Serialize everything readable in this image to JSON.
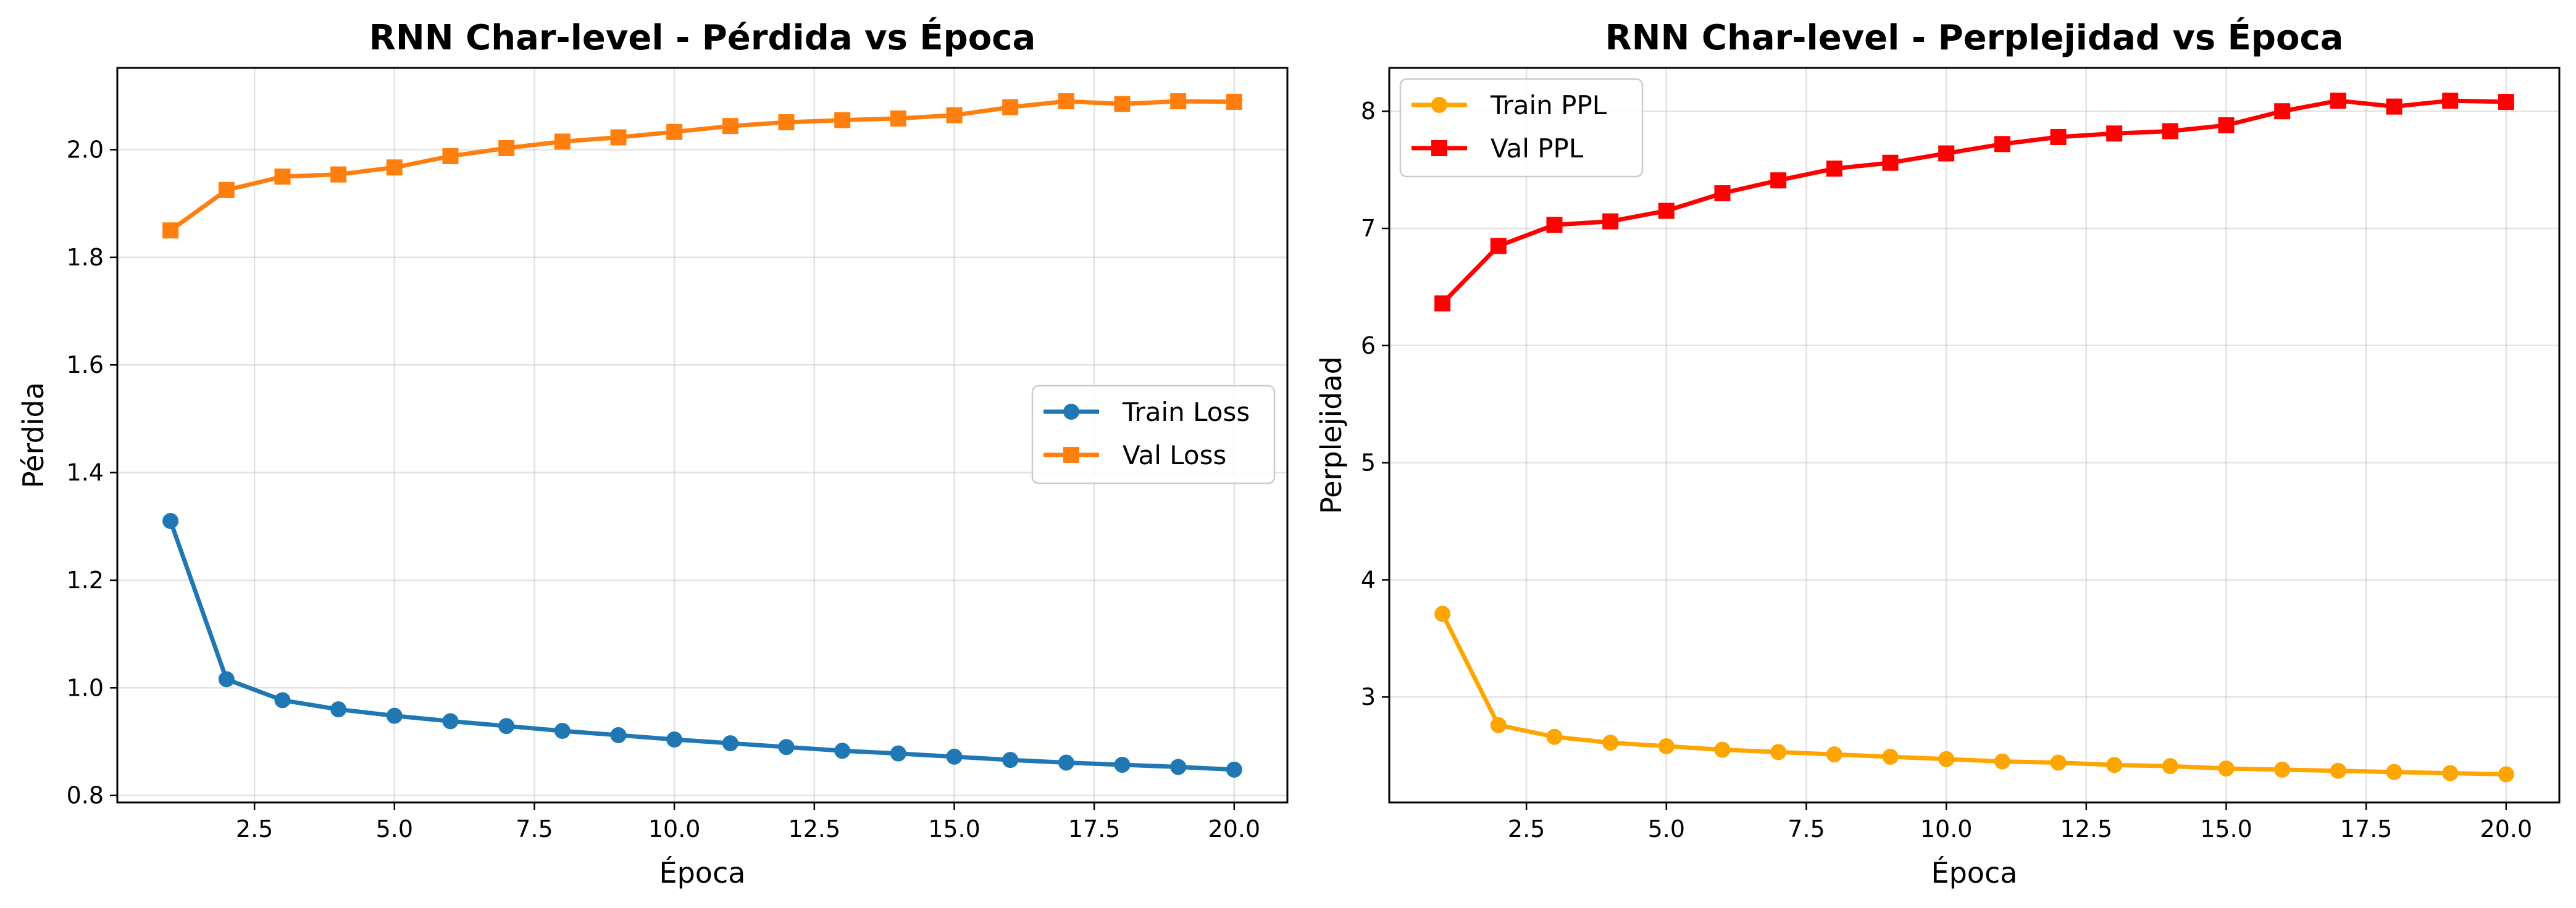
{
  "chart_data": [
    {
      "type": "line",
      "title": "RNN Char-level - Pérdida vs Época",
      "xlabel": "Época",
      "ylabel": "Pérdida",
      "xlim": [
        0.05,
        20.95
      ],
      "ylim": [
        0.787,
        2.152
      ],
      "xticks": [
        2.5,
        5.0,
        7.5,
        10.0,
        12.5,
        15.0,
        17.5,
        20.0
      ],
      "xtick_labels": [
        "2.5",
        "5.0",
        "7.5",
        "10.0",
        "12.5",
        "15.0",
        "17.5",
        "20.0"
      ],
      "yticks": [
        0.8,
        1.0,
        1.2,
        1.4,
        1.6,
        1.8,
        2.0
      ],
      "ytick_labels": [
        "0.8",
        "1.0",
        "1.2",
        "1.4",
        "1.6",
        "1.8",
        "2.0"
      ],
      "grid": true,
      "legend_position": "center-right",
      "x": [
        1,
        2,
        3,
        4,
        5,
        6,
        7,
        8,
        9,
        10,
        11,
        12,
        13,
        14,
        15,
        16,
        17,
        18,
        19,
        20
      ],
      "series": [
        {
          "name": "Train Loss",
          "color": "#1f77b4",
          "marker": "circle",
          "values": [
            1.31,
            1.016,
            0.977,
            0.96,
            0.948,
            0.938,
            0.929,
            0.92,
            0.912,
            0.904,
            0.897,
            0.89,
            0.883,
            0.878,
            0.872,
            0.866,
            0.861,
            0.857,
            0.853,
            0.848
          ]
        },
        {
          "name": "Val Loss",
          "color": "#ff7f0e",
          "marker": "square",
          "values": [
            1.85,
            1.925,
            1.95,
            1.954,
            1.967,
            1.988,
            2.003,
            2.015,
            2.023,
            2.033,
            2.044,
            2.051,
            2.055,
            2.058,
            2.064,
            2.079,
            2.09,
            2.085,
            2.09,
            2.089
          ]
        }
      ]
    },
    {
      "type": "line",
      "title": "RNN Char-level - Perplejidad vs Época",
      "xlabel": "Época",
      "ylabel": "Perplejidad",
      "xlim": [
        0.05,
        20.95
      ],
      "ylim": [
        2.1,
        8.37
      ],
      "xticks": [
        2.5,
        5.0,
        7.5,
        10.0,
        12.5,
        15.0,
        17.5,
        20.0
      ],
      "xtick_labels": [
        "2.5",
        "5.0",
        "7.5",
        "10.0",
        "12.5",
        "15.0",
        "17.5",
        "20.0"
      ],
      "yticks": [
        3,
        4,
        5,
        6,
        7,
        8
      ],
      "ytick_labels": [
        "3",
        "4",
        "5",
        "6",
        "7",
        "8"
      ],
      "grid": true,
      "legend_position": "top-left",
      "x": [
        1,
        2,
        3,
        4,
        5,
        6,
        7,
        8,
        9,
        10,
        11,
        12,
        13,
        14,
        15,
        16,
        17,
        18,
        19,
        20
      ],
      "series": [
        {
          "name": "Train PPL",
          "color": "#ffa500",
          "marker": "circle",
          "values": [
            3.71,
            2.76,
            2.66,
            2.61,
            2.58,
            2.55,
            2.53,
            2.51,
            2.49,
            2.47,
            2.45,
            2.44,
            2.42,
            2.41,
            2.39,
            2.38,
            2.37,
            2.36,
            2.35,
            2.34
          ]
        },
        {
          "name": "Val PPL",
          "color": "#ff0000",
          "marker": "square",
          "values": [
            6.36,
            6.85,
            7.03,
            7.06,
            7.15,
            7.3,
            7.41,
            7.51,
            7.56,
            7.64,
            7.72,
            7.78,
            7.81,
            7.83,
            7.88,
            8.0,
            8.09,
            8.04,
            8.09,
            8.08
          ]
        }
      ]
    }
  ]
}
